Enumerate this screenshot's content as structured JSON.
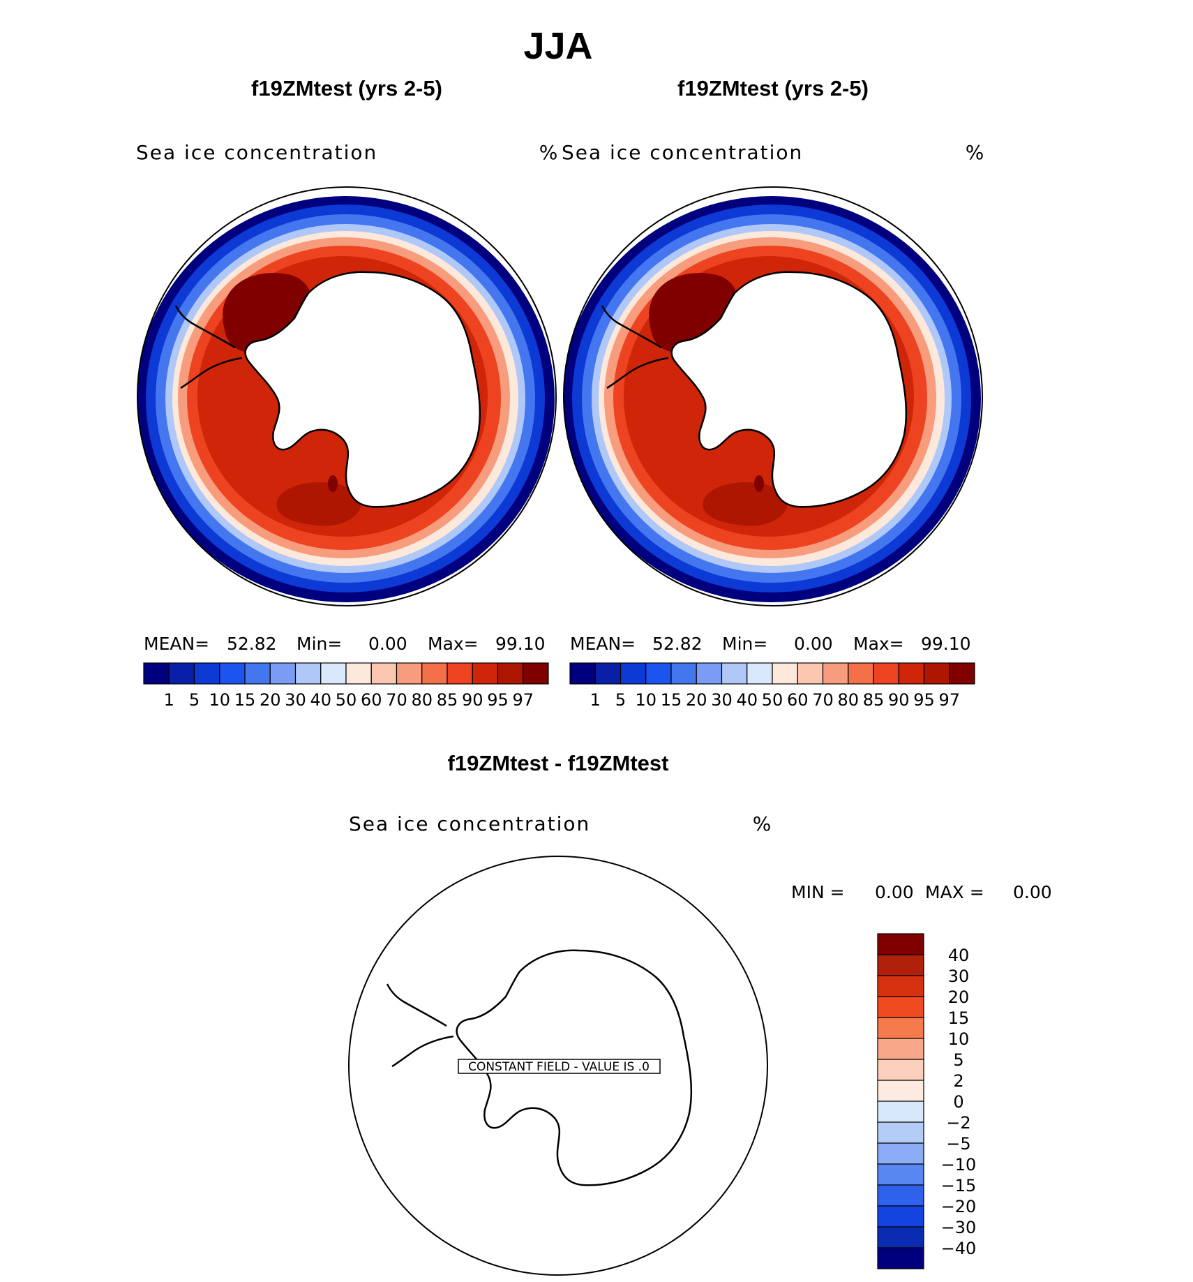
{
  "chart_data": {
    "type": "polar-contour",
    "title": "JJA",
    "panels": [
      {
        "id": "left",
        "title": "f19ZMtest (yrs 2-5)",
        "variable": "Sea ice concentration",
        "units": "%",
        "stats": {
          "mean_label": "MEAN=",
          "mean": "52.82",
          "min_label": "Min=",
          "min": "0.00",
          "max_label": "Max=",
          "max": "99.10"
        },
        "levels": [
          "1",
          "5",
          "10",
          "15",
          "20",
          "30",
          "40",
          "50",
          "60",
          "70",
          "80",
          "85",
          "90",
          "95",
          "97"
        ],
        "colors": [
          "#00007f",
          "#0a1fa8",
          "#0d39d4",
          "#1c54ef",
          "#4476f0",
          "#7a9cf4",
          "#b0c8f7",
          "#d9e8fb",
          "#fde8dc",
          "#fbc7b0",
          "#f79c7c",
          "#f37049",
          "#ee4320",
          "#cf2508",
          "#ad1702",
          "#800000"
        ]
      },
      {
        "id": "right",
        "title": "f19ZMtest (yrs 2-5)",
        "variable": "Sea ice concentration",
        "units": "%",
        "stats": {
          "mean_label": "MEAN=",
          "mean": "52.82",
          "min_label": "Min=",
          "min": "0.00",
          "max_label": "Max=",
          "max": "99.10"
        },
        "levels": [
          "1",
          "5",
          "10",
          "15",
          "20",
          "30",
          "40",
          "50",
          "60",
          "70",
          "80",
          "85",
          "90",
          "95",
          "97"
        ],
        "colors": [
          "#00007f",
          "#0a1fa8",
          "#0d39d4",
          "#1c54ef",
          "#4476f0",
          "#7a9cf4",
          "#b0c8f7",
          "#d9e8fb",
          "#fde8dc",
          "#fbc7b0",
          "#f79c7c",
          "#f37049",
          "#ee4320",
          "#cf2508",
          "#ad1702",
          "#800000"
        ]
      },
      {
        "id": "diff",
        "title": "f19ZMtest - f19ZMtest",
        "variable": "Sea ice concentration",
        "units": "%",
        "stats": {
          "min_label": "MIN =",
          "min": "0.00",
          "max_label": "MAX =",
          "max": "0.00"
        },
        "note": "CONSTANT FIELD - VALUE IS .0",
        "levels": [
          "40",
          "30",
          "20",
          "15",
          "10",
          "5",
          "2",
          "0",
          "−2",
          "−5",
          "−10",
          "−15",
          "−20",
          "−30",
          "−40"
        ],
        "colors": [
          "#800000",
          "#b0200a",
          "#d63210",
          "#f04a20",
          "#f57a4c",
          "#f8a888",
          "#fbd0bc",
          "#fdeae0",
          "#d8e8fb",
          "#b4cdf7",
          "#8aadf5",
          "#5887f1",
          "#2f62ec",
          "#1444e0",
          "#0a2cb0",
          "#00007f"
        ]
      }
    ]
  }
}
